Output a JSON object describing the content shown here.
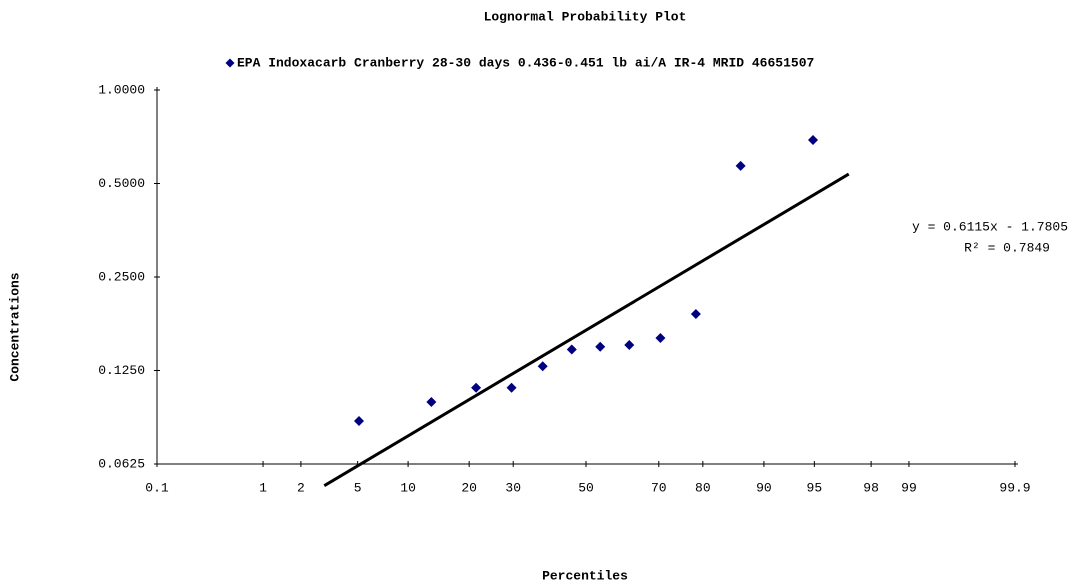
{
  "chart_data": {
    "type": "scatter",
    "title": "Lognormal Probability Plot",
    "x_label": "Percentiles",
    "y_label": "Concentrations",
    "x_scale": "probability",
    "y_scale": "log",
    "legend": "top",
    "series": [
      {
        "name": "EPA Indoxacarb Cranberry 28-30 days 0.436-0.451 lb ai/A IR-4 MRID 46651507",
        "color": "#000080",
        "x": [
          5.1,
          13.27,
          21.43,
          29.59,
          37.76,
          45.92,
          54.08,
          62.24,
          70.41,
          78.57,
          86.73,
          94.9
        ],
        "values": [
          0.086,
          0.099,
          0.11,
          0.11,
          0.129,
          0.146,
          0.149,
          0.151,
          0.159,
          0.19,
          0.57,
          0.69
        ]
      }
    ],
    "trendline": {
      "slope": 0.6115,
      "intercept": -1.7805,
      "x": [
        2.97,
        97.08
      ],
      "color": "#000000",
      "equation": "y = 0.6115x - 1.7805",
      "r2_label": "R² = 0.7849"
    },
    "xlim": [
      0.1,
      99.9
    ],
    "xticks": [
      0.1,
      1,
      2,
      5,
      10,
      20,
      30,
      50,
      70,
      80,
      90,
      95,
      98,
      99,
      99.9
    ],
    "ylim": [
      0.0625,
      1
    ],
    "yticks": [
      {
        "value": 1,
        "label": "1.0000"
      },
      {
        "value": 0.5,
        "label": "0.5000"
      },
      {
        "value": 0.25,
        "label": "0.2500"
      },
      {
        "value": 0.125,
        "label": "0.1250"
      },
      {
        "value": 0.0625,
        "label": "0.0625"
      }
    ]
  }
}
